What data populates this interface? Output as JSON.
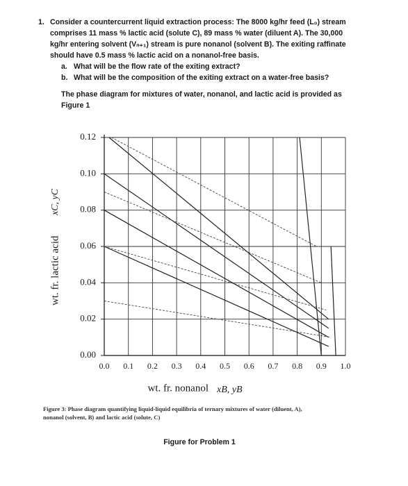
{
  "problem": {
    "number": "1.",
    "lines": [
      "Consider a countercurrent liquid extraction process: The 8000 kg/hr feed (L₀) stream",
      "comprises 11 mass % lactic acid (solute C), 89 mass % water (diluent A). The 30,000",
      "kg/hr entering solvent (Vₙ₊₁) stream is pure nonanol (solvent B). The exiting raffinate",
      "should have 0.5 mass % lactic acid on a nonanol-free basis."
    ],
    "questions": [
      {
        "label": "a.",
        "text": "What will be the flow rate of the exiting extract?"
      },
      {
        "label": "b.",
        "text": "What will be the composition of the exiting extract on a water-free basis?"
      }
    ],
    "note": [
      "The phase diagram for mixtures of water, nonanol, and lactic acid is provided as",
      "Figure 1"
    ]
  },
  "chart_data": {
    "type": "line",
    "x_label": "wt. fr. nonanol",
    "x_symbol": "xB, yB",
    "y_label": "wt. fr. lactic acid",
    "y_symbol": "xC, yC",
    "xlim": [
      0,
      1
    ],
    "ylim": [
      0,
      0.12
    ],
    "xticks": [
      {
        "value": 0,
        "label": "0.0"
      },
      0.1,
      0.2,
      0.3,
      0.4,
      0.5,
      0.6,
      0.7,
      0.8,
      0.9,
      {
        "value": 1,
        "label": "1.0"
      }
    ],
    "yticks": [
      {
        "value": 0,
        "label": "0.00"
      },
      0.02,
      0.04,
      0.06,
      0.08,
      {
        "value": 0.1,
        "label": "0.10"
      },
      0.12
    ],
    "grid": true,
    "series": [
      {
        "color": "#222222",
        "dashed": false,
        "x": [
          0.02,
          0.93
        ],
        "values": [
          0.12,
          0.02
        ]
      },
      {
        "color": "#222222",
        "dashed": false,
        "x": [
          0,
          0.93
        ],
        "values": [
          0.1,
          0.015
        ]
      },
      {
        "color": "#222222",
        "dashed": false,
        "x": [
          0,
          0.93
        ],
        "values": [
          0.08,
          0.01
        ]
      },
      {
        "color": "#222222",
        "dashed": false,
        "x": [
          0,
          0.93
        ],
        "values": [
          0.06,
          0.005
        ]
      },
      {
        "color": "#222222",
        "dashed": false,
        "x": [
          0.81,
          0.9
        ],
        "values": [
          0.12,
          0
        ]
      },
      {
        "color": "#222222",
        "dashed": false,
        "x": [
          0.94,
          0.96
        ],
        "values": [
          0.06,
          0
        ]
      },
      {
        "color": "#444444",
        "dashed": true,
        "x": [
          0.03,
          0.88
        ],
        "values": [
          0.12,
          0.06
        ]
      },
      {
        "color": "#444444",
        "dashed": true,
        "x": [
          0,
          0.9
        ],
        "values": [
          0.09,
          0.04
        ]
      },
      {
        "color": "#444444",
        "dashed": true,
        "x": [
          0,
          0.92
        ],
        "values": [
          0.06,
          0.025
        ]
      },
      {
        "color": "#444444",
        "dashed": true,
        "x": [
          0,
          0.94
        ],
        "values": [
          0.03,
          0.01
        ]
      }
    ]
  },
  "caption": [
    "Figure 3: Phase diagram quantifying liquid-liquid equilibria of ternary mixtures of water (diluent, A),",
    "nonanol (solvent, B) and lactic acid (solute, C)"
  ],
  "figure_label": "Figure for Problem 1"
}
